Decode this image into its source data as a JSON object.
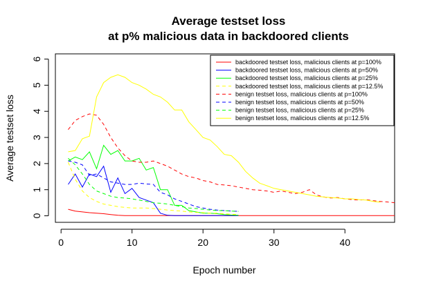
{
  "chart_data": {
    "type": "line",
    "title": "Average testset loss",
    "subtitle": "at p% malicious data in backdoored clients",
    "xlabel": "Epoch number",
    "ylabel": "Average testset loss",
    "xlim": [
      -0.8,
      47
    ],
    "ylim": [
      -0.25,
      6.2
    ],
    "xticks": [
      0,
      10,
      20,
      30,
      40
    ],
    "yticks": [
      0,
      1,
      2,
      3,
      4,
      5,
      6
    ],
    "grid": false,
    "legend_position": "top-right",
    "series": [
      {
        "name": "backdoored testset loss, malicious clients at p=100%",
        "color": "#ff0000",
        "dash": "solid",
        "x": [
          1,
          2,
          3,
          4,
          5,
          6,
          7,
          8,
          9,
          10,
          11,
          12,
          13,
          14,
          15,
          16,
          17,
          18,
          19,
          20,
          21,
          22,
          23,
          24,
          25,
          26,
          27,
          28,
          29,
          30,
          31,
          32,
          33,
          34,
          35,
          36,
          37,
          38,
          39,
          40,
          41,
          42,
          43,
          44,
          45,
          46,
          47
        ],
        "values": [
          0.25,
          0.18,
          0.15,
          0.12,
          0.1,
          0.08,
          0.05,
          0.02,
          0.01,
          0.01,
          0.01,
          0.01,
          0.01,
          0.01,
          0.01,
          0.01,
          0.01,
          0.01,
          0.01,
          0.01,
          0.01,
          0.01,
          0.01,
          0.01,
          0.01,
          0.01,
          0.01,
          0.01,
          0.01,
          0.01,
          0.01,
          0.01,
          0.01,
          0.01,
          0.01,
          0.01,
          0.01,
          0.01,
          0.01,
          0.01,
          0.01,
          0.01,
          0.01,
          0.01,
          0.01,
          0.01,
          0.01
        ]
      },
      {
        "name": "backdoored testset loss, malicious clients at p=50%",
        "color": "#0000ff",
        "dash": "solid",
        "x": [
          1,
          2,
          3,
          4,
          5,
          6,
          7,
          8,
          9,
          10,
          11,
          12,
          13,
          14,
          15,
          16,
          17,
          18,
          19,
          20,
          21,
          22,
          23,
          24,
          25
        ],
        "values": [
          1.2,
          1.6,
          1.1,
          1.6,
          1.5,
          1.9,
          0.9,
          1.45,
          0.85,
          1.05,
          0.7,
          0.6,
          0.5,
          0.1,
          0.02,
          0.01,
          0.01,
          0.01,
          0.01,
          0.01,
          0.01,
          0.01,
          0.01,
          0.01,
          0.01
        ]
      },
      {
        "name": "backdoored testset loss, malicious clients at p=25%",
        "color": "#00ff00",
        "dash": "solid",
        "x": [
          1,
          2,
          3,
          4,
          5,
          6,
          7,
          8,
          9,
          10,
          11,
          12,
          13,
          14,
          15,
          16,
          17,
          18,
          19,
          20,
          21,
          22,
          23,
          24,
          25
        ],
        "values": [
          2.1,
          2.25,
          2.15,
          2.45,
          1.8,
          2.7,
          2.35,
          2.5,
          2.1,
          2.1,
          2.2,
          1.75,
          1.85,
          1.0,
          1.0,
          0.4,
          0.4,
          0.2,
          0.15,
          0.1,
          0.1,
          0.08,
          0.05,
          0.03,
          0.02
        ]
      },
      {
        "name": "backdoored testset loss, malicious clients at p=12.5%",
        "color": "#ffff00",
        "dash": "dashed",
        "x": [
          1,
          2,
          3,
          4,
          5,
          6,
          7,
          8,
          9,
          10,
          11,
          12,
          13,
          14,
          15,
          16,
          17,
          18,
          19,
          20,
          21,
          22,
          23,
          24,
          25
        ],
        "values": [
          2.05,
          1.4,
          0.95,
          0.7,
          0.55,
          0.45,
          0.4,
          0.35,
          0.32,
          0.3,
          0.3,
          0.3,
          0.28,
          0.25,
          0.22,
          0.2,
          0.18,
          0.15,
          0.13,
          0.12,
          0.1,
          0.1,
          0.08,
          0.06,
          0.05
        ]
      },
      {
        "name": "benign testset loss, malicious clients at p=100%",
        "color": "#ff0000",
        "dash": "dashed",
        "x": [
          1,
          2,
          3,
          4,
          5,
          6,
          7,
          8,
          9,
          10,
          11,
          12,
          13,
          14,
          15,
          16,
          17,
          18,
          19,
          20,
          21,
          22,
          23,
          24,
          25,
          26,
          27,
          28,
          29,
          30,
          31,
          32,
          33,
          34,
          35,
          36,
          37,
          38,
          39,
          40,
          41,
          42,
          43,
          44,
          45,
          46,
          47
        ],
        "values": [
          3.3,
          3.65,
          3.8,
          3.9,
          3.85,
          3.5,
          3.0,
          2.6,
          2.3,
          2.1,
          2.05,
          2.05,
          2.1,
          2.0,
          1.9,
          1.75,
          1.6,
          1.5,
          1.45,
          1.35,
          1.3,
          1.2,
          1.18,
          1.15,
          1.1,
          1.05,
          1.0,
          0.98,
          0.95,
          0.9,
          0.95,
          0.9,
          0.85,
          0.9,
          1.0,
          0.8,
          0.72,
          0.68,
          0.7,
          0.65,
          0.62,
          0.6,
          0.62,
          0.58,
          0.55,
          0.53,
          0.5
        ]
      },
      {
        "name": "benign testset loss, malicious clients at p=50%",
        "color": "#0000ff",
        "dash": "dashed",
        "x": [
          1,
          2,
          3,
          4,
          5,
          6,
          7,
          8,
          9,
          10,
          11,
          12,
          13,
          14,
          15,
          16,
          17,
          18,
          19,
          20,
          21,
          22,
          23,
          24,
          25
        ],
        "values": [
          2.1,
          2.05,
          1.95,
          1.55,
          1.6,
          1.45,
          1.3,
          1.25,
          1.2,
          1.2,
          1.25,
          1.22,
          1.2,
          0.9,
          0.8,
          0.65,
          0.55,
          0.45,
          0.35,
          0.3,
          0.25,
          0.22,
          0.2,
          0.18,
          0.17
        ]
      },
      {
        "name": "benign testset loss, malicious clients at p=25%",
        "color": "#00ff00",
        "dash": "dashed",
        "x": [
          1,
          2,
          3,
          4,
          5,
          6,
          7,
          8,
          9,
          10,
          11,
          12,
          13,
          14,
          15,
          16,
          17,
          18,
          19,
          20,
          21,
          22,
          23,
          24,
          25
        ],
        "values": [
          2.2,
          1.95,
          1.6,
          1.2,
          0.95,
          0.85,
          0.75,
          0.7,
          0.68,
          0.65,
          0.6,
          0.55,
          0.5,
          0.48,
          0.45,
          0.4,
          0.35,
          0.3,
          0.28,
          0.25,
          0.22,
          0.2,
          0.2,
          0.18,
          0.17
        ]
      },
      {
        "name": "benign testset loss, malicious clients at p=12.5%",
        "color": "#ffff00",
        "dash": "solid",
        "x": [
          1,
          2,
          3,
          4,
          5,
          6,
          7,
          8,
          9,
          10,
          11,
          12,
          13,
          14,
          15,
          16,
          17,
          18,
          19,
          20,
          21,
          22,
          23,
          24,
          25,
          26,
          27,
          28,
          29,
          30,
          31,
          32,
          33,
          34,
          35,
          36,
          37,
          38,
          39,
          40,
          41,
          42,
          43,
          44,
          45
        ],
        "values": [
          2.45,
          2.5,
          2.95,
          3.05,
          4.55,
          5.1,
          5.3,
          5.4,
          5.3,
          5.1,
          5.0,
          4.85,
          4.65,
          4.55,
          4.35,
          4.05,
          4.05,
          3.6,
          3.3,
          3.0,
          2.9,
          2.65,
          2.35,
          2.3,
          2.05,
          1.7,
          1.45,
          1.25,
          1.15,
          1.05,
          1.0,
          0.95,
          0.9,
          0.85,
          0.8,
          0.75,
          0.72,
          0.7,
          0.68,
          0.65,
          0.65,
          0.62,
          0.6,
          0.55,
          0.52
        ]
      }
    ]
  }
}
